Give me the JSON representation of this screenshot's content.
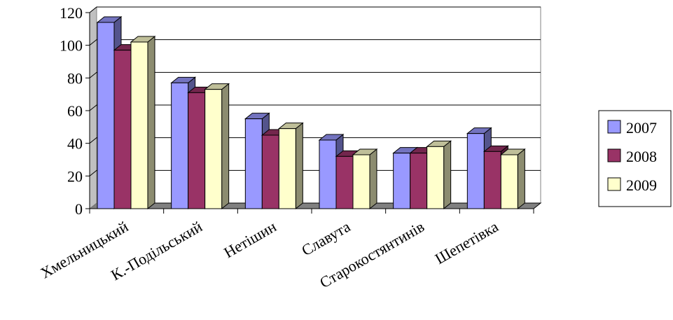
{
  "chart_data": {
    "type": "bar",
    "title": "",
    "xlabel": "",
    "ylabel": "",
    "categories": [
      "Хмельницький",
      "К.-Подільський",
      "Нетішин",
      "Славута",
      "Старокостянтинів",
      "Шепетівка"
    ],
    "series": [
      {
        "name": "2007",
        "values": [
          114,
          77,
          55,
          42,
          34,
          46
        ],
        "color": "#9999ff"
      },
      {
        "name": "2008",
        "values": [
          97,
          71,
          45,
          32,
          34,
          35
        ],
        "color": "#993366"
      },
      {
        "name": "2009",
        "values": [
          102,
          73,
          49,
          33,
          38,
          33
        ],
        "color": "#ffffcc"
      }
    ],
    "ylim": [
      0,
      120
    ],
    "yticks": [
      "0",
      "20",
      "40",
      "60",
      "80",
      "100",
      "120"
    ],
    "grid": true,
    "legend": "right",
    "style": "3d-clustered-column"
  }
}
